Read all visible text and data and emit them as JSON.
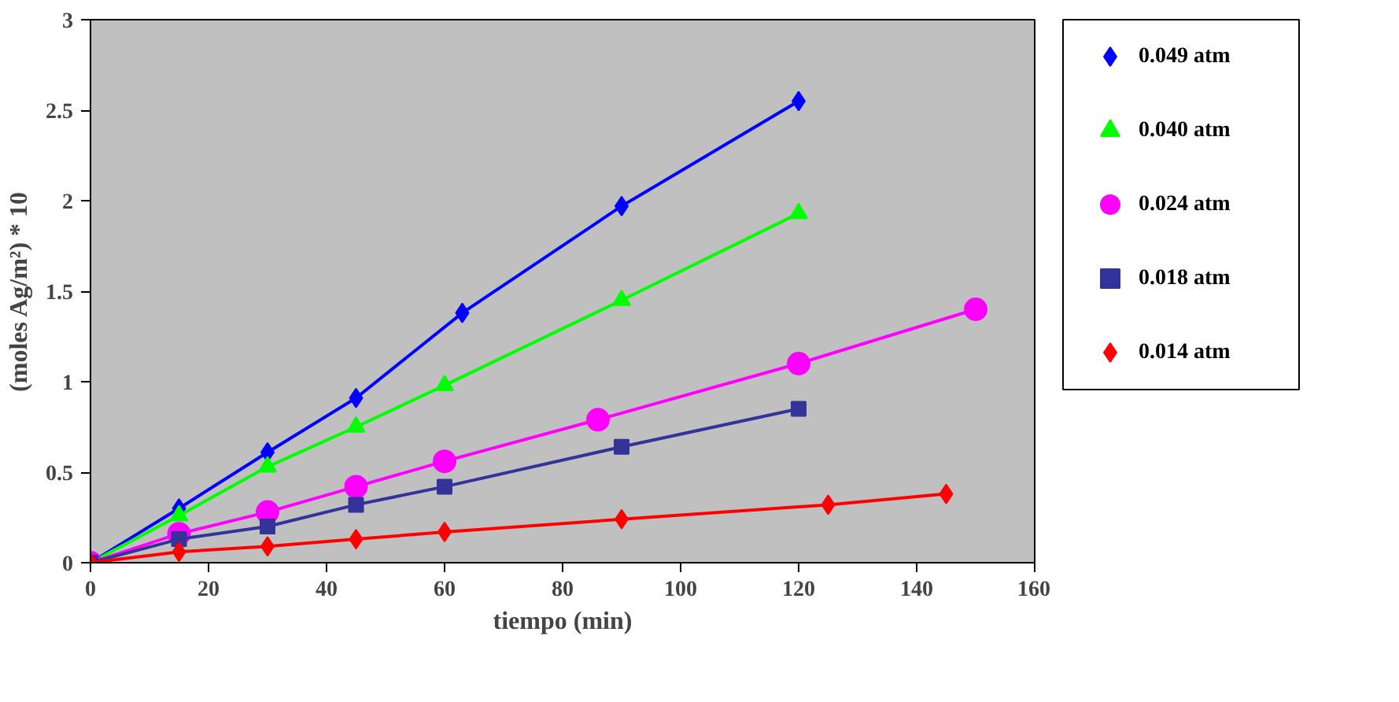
{
  "chart_data": {
    "type": "line",
    "xlabel": "tiempo (min)",
    "ylabel": "(moles Ag/m²) * 10",
    "xlim": [
      0,
      160
    ],
    "xticks": [
      0,
      20,
      40,
      60,
      80,
      100,
      120,
      140,
      160
    ],
    "ylim": [
      0,
      3
    ],
    "yticks": [
      0,
      0.5,
      1,
      1.5,
      2,
      2.5,
      3
    ],
    "grid": false,
    "legend": "right",
    "line_style": "solid",
    "series": [
      {
        "name": "0.049 atm",
        "color": "#0000ff",
        "marker": "diamond",
        "x": [
          0,
          15,
          30,
          45,
          63,
          90,
          120
        ],
        "values": [
          0,
          0.3,
          0.61,
          0.91,
          1.38,
          1.97,
          2.55
        ]
      },
      {
        "name": "0.040 atm",
        "color": "#00ff00",
        "marker": "triangle",
        "x": [
          0,
          15,
          30,
          45,
          60,
          90,
          120
        ],
        "values": [
          0,
          0.26,
          0.53,
          0.75,
          0.98,
          1.45,
          1.93
        ]
      },
      {
        "name": "0.024 atm",
        "color": "#ff00ff",
        "marker": "circle",
        "x": [
          0,
          15,
          30,
          45,
          60,
          86,
          120,
          150
        ],
        "values": [
          0,
          0.16,
          0.28,
          0.42,
          0.56,
          0.79,
          1.1,
          1.4
        ]
      },
      {
        "name": "0.018 atm",
        "color": "#333399",
        "marker": "square",
        "x": [
          0,
          15,
          30,
          45,
          60,
          90,
          120
        ],
        "values": [
          0,
          0.13,
          0.2,
          0.32,
          0.42,
          0.64,
          0.85
        ]
      },
      {
        "name": "0.014 atm",
        "color": "#ff0000",
        "marker": "diamond",
        "x": [
          0,
          15,
          30,
          45,
          60,
          90,
          125,
          145
        ],
        "values": [
          0,
          0.06,
          0.09,
          0.13,
          0.17,
          0.24,
          0.32,
          0.38
        ]
      }
    ]
  }
}
